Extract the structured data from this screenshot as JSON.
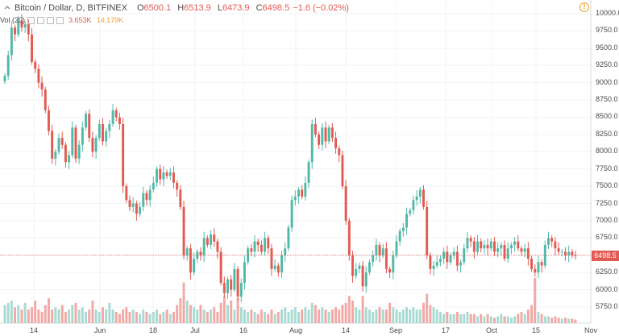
{
  "header": {
    "title": "Bitcoin / Dollar, D, BITFINEX",
    "ohlc": [
      {
        "k": "O",
        "v": "6500.1"
      },
      {
        "k": "H",
        "v": "6513.9"
      },
      {
        "k": "L",
        "v": "6473.9"
      },
      {
        "k": "C",
        "v": "6498.5"
      }
    ],
    "change": "−1.6 (−0.02%)"
  },
  "volume": {
    "label": "Vol (20)",
    "value1": "3.653K",
    "value2": "14.179K"
  },
  "price_tag": "6498.5",
  "colors": {
    "up": "#53b9a7",
    "down": "#e25b52",
    "up_vol": "#a8dad2",
    "down_vol": "#f2a8a5",
    "grid": "#f0f3f6"
  },
  "chart_data": {
    "type": "candlestick",
    "y_range": [
      5500,
      10150
    ],
    "y_ticks": [
      "10000.0",
      "9750.0",
      "9500.0",
      "9250.0",
      "9000.0",
      "8750.0",
      "8500.0",
      "8250.0",
      "8000.0",
      "7750.0",
      "7500.0",
      "7250.0",
      "7000.0",
      "6750.0",
      "6500.0",
      "6250.0",
      "6000.0",
      "5750.0"
    ],
    "x_ticks": [
      "14",
      "Jun",
      "18",
      "Jul",
      "16",
      "Aug",
      "14",
      "Sep",
      "17",
      "Oct",
      "15",
      "Nov"
    ],
    "closes": [
      9100,
      9400,
      9800,
      9700,
      9900,
      9800,
      9850,
      9700,
      9300,
      9200,
      9000,
      8900,
      8600,
      8300,
      7900,
      8000,
      8200,
      8100,
      7850,
      7950,
      8350,
      7900,
      8100,
      8350,
      8550,
      8200,
      8000,
      8200,
      8400,
      8150,
      8300,
      8400,
      8600,
      8500,
      8400,
      7500,
      7300,
      7200,
      7250,
      7100,
      7200,
      7400,
      7300,
      7450,
      7550,
      7750,
      7600,
      7700,
      7650,
      7700,
      7550,
      7450,
      7200,
      6500,
      6600,
      6250,
      6450,
      6550,
      6500,
      6750,
      6650,
      6800,
      6700,
      6550,
      6100,
      5950,
      6150,
      6000,
      6300,
      5900,
      6100,
      6400,
      6600,
      6550,
      6700,
      6650,
      6550,
      6750,
      6600,
      6300,
      6350,
      6250,
      6500,
      6600,
      6900,
      7300,
      7350,
      7450,
      7350,
      7550,
      7850,
      8400,
      8250,
      8100,
      8350,
      8150,
      8350,
      8200,
      8050,
      7950,
      7500,
      7000,
      6500,
      6200,
      6300,
      6350,
      6050,
      6250,
      6400,
      6500,
      6650,
      6500,
      6600,
      6300,
      6250,
      6500,
      6700,
      6850,
      6900,
      7100,
      7150,
      7300,
      7350,
      7450,
      7200,
      6500,
      6300,
      6350,
      6400,
      6450,
      6550,
      6400,
      6500,
      6550,
      6350,
      6400,
      6600,
      6750,
      6700,
      6550,
      6700,
      6600,
      6650,
      6600,
      6700,
      6550,
      6600,
      6650,
      6450,
      6600,
      6650,
      6700,
      6600,
      6550,
      6600,
      6450,
      6300,
      6250,
      6400,
      6350,
      6650,
      6750,
      6700,
      6600,
      6550,
      6550,
      6500,
      6550,
      6500,
      6498.5
    ],
    "volumes": [
      0.4,
      0.45,
      0.5,
      0.35,
      0.4,
      0.3,
      0.45,
      0.3,
      0.35,
      0.5,
      0.3,
      0.25,
      0.4,
      0.55,
      0.3,
      0.35,
      0.3,
      0.4,
      0.25,
      0.3,
      0.4,
      0.45,
      0.3,
      0.35,
      0.25,
      0.3,
      0.5,
      0.3,
      0.25,
      0.35,
      0.3,
      0.45,
      0.3,
      0.25,
      0.2,
      0.3,
      0.35,
      0.25,
      0.3,
      0.25,
      0.2,
      0.3,
      0.25,
      0.2,
      0.25,
      0.3,
      0.2,
      0.25,
      0.3,
      0.2,
      0.25,
      0.4,
      0.55,
      0.9,
      0.5,
      0.4,
      0.35,
      0.3,
      0.4,
      0.3,
      0.25,
      0.3,
      0.35,
      0.25,
      0.45,
      0.6,
      0.4,
      0.5,
      0.3,
      0.55,
      0.35,
      0.3,
      0.25,
      0.3,
      0.25,
      0.2,
      0.3,
      0.25,
      0.2,
      0.3,
      0.2,
      0.25,
      0.3,
      0.35,
      0.25,
      0.3,
      0.35,
      0.25,
      0.3,
      0.35,
      0.3,
      0.45,
      0.4,
      0.3,
      0.35,
      0.3,
      0.25,
      0.3,
      0.35,
      0.3,
      0.4,
      0.45,
      0.6,
      0.5,
      0.35,
      0.3,
      0.6,
      0.35,
      0.3,
      0.25,
      0.3,
      0.35,
      0.3,
      0.3,
      0.45,
      0.35,
      0.3,
      0.25,
      0.3,
      0.35,
      0.3,
      0.35,
      0.3,
      0.3,
      0.45,
      0.65,
      0.4,
      0.35,
      0.3,
      0.25,
      0.2,
      0.25,
      0.2,
      0.2,
      0.25,
      0.2,
      0.2,
      0.25,
      0.2,
      0.2,
      0.15,
      0.2,
      0.15,
      0.2,
      0.15,
      0.12,
      0.15,
      0.2,
      0.15,
      0.15,
      0.12,
      0.15,
      0.2,
      0.25,
      0.2,
      0.3,
      0.4,
      1.0,
      0.25,
      0.2,
      0.15,
      0.15,
      0.12,
      0.15,
      0.12,
      0.1,
      0.12,
      0.1,
      0.1,
      0.08
    ]
  }
}
